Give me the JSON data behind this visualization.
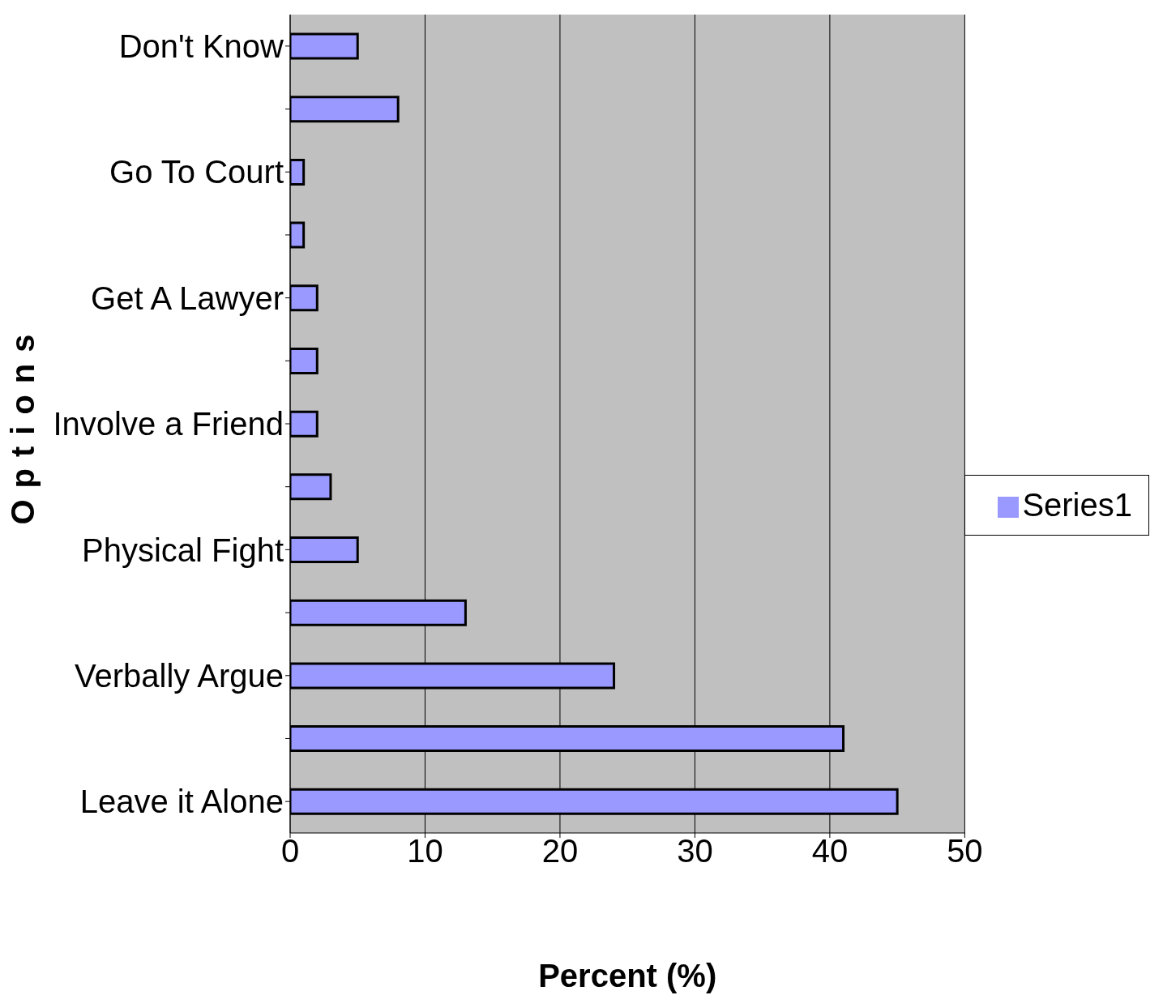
{
  "chart_data": {
    "type": "bar",
    "orientation": "horizontal",
    "xlabel": "Percent (%)",
    "ylabel": "Options",
    "categories": [
      "Don't Know",
      null,
      "Go To Court",
      null,
      "Get A Lawyer",
      null,
      "Involve a Friend",
      null,
      "Physical Fight",
      null,
      "Verbally Argue",
      null,
      "Leave it Alone"
    ],
    "series": [
      {
        "name": "Series1",
        "color": "#9999ff",
        "values": [
          5,
          8,
          1,
          1,
          2,
          2,
          2,
          3,
          5,
          13,
          24,
          41,
          45
        ]
      }
    ],
    "xlim": [
      0,
      50
    ],
    "xticks": [
      0,
      10,
      20,
      30,
      40,
      50
    ],
    "grid": "x",
    "legend": "right"
  }
}
